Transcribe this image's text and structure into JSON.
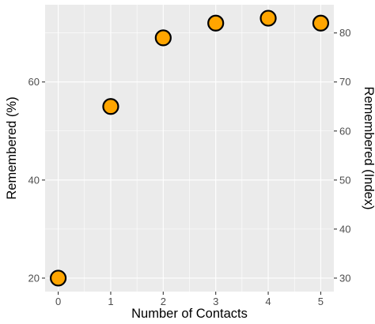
{
  "chart_data": {
    "type": "scatter",
    "title": "",
    "xlabel": "Number of Contacts",
    "ylabel": "Remembered (%)",
    "ylabel_right": "Remembered (Index)",
    "x": [
      0,
      1,
      2,
      3,
      4,
      5
    ],
    "y": [
      20,
      55,
      69,
      72,
      73,
      72
    ],
    "xlim": [
      -0.25,
      5.25
    ],
    "ylim": [
      17.25,
      75.75
    ],
    "x_ticks": [
      0,
      1,
      2,
      3,
      4,
      5
    ],
    "y_ticks": [
      20,
      40,
      60
    ],
    "y_ticks_right": [
      30,
      40,
      50,
      60,
      70,
      80
    ],
    "secondary_axis": "index = percent + 10",
    "point_color": "#ffa500",
    "point_outline": "#000000",
    "grid": true,
    "legend": "none"
  }
}
